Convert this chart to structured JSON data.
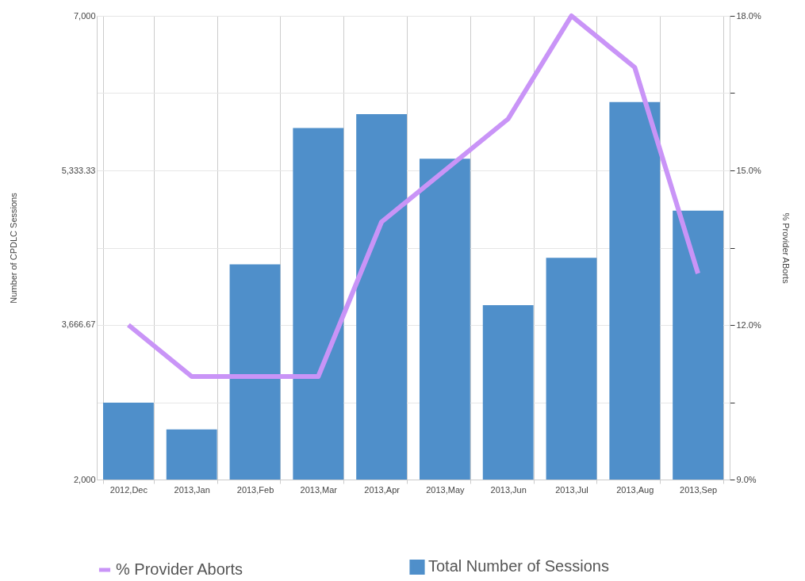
{
  "chart_data": {
    "type": "bar",
    "xlabel": null,
    "ylabel": "Number of CPDLC Sessions",
    "y2label": "% Provider ABorts",
    "categories": [
      "2012,Dec",
      "2013,Jan",
      "2013,Feb",
      "2013,Mar",
      "2013,Apr",
      "2013,May",
      "2013,Jun",
      "2013,Jul",
      "2013,Aug",
      "2013,Sep"
    ],
    "series": [
      {
        "name": "% Provider Aborts",
        "type": "line",
        "axis": "y2",
        "color": "#c994f7",
        "values": [
          12,
          11,
          11,
          11,
          14,
          15,
          16,
          18,
          17,
          13
        ]
      },
      {
        "name": "Total Number of Sessions",
        "color": "#4f8fca",
        "values": [
          2830,
          2540,
          4320,
          5790,
          5940,
          5460,
          3880,
          4390,
          6070,
          4900
        ]
      }
    ],
    "ylim": [
      2000,
      7000
    ],
    "yticks": [
      {
        "value": 2000,
        "label": "2,000"
      },
      {
        "value": 2833.33,
        "label": null
      },
      {
        "value": 3666.67,
        "label": "3,666.67"
      },
      {
        "value": 4500,
        "label": null
      },
      {
        "value": 5333.33,
        "label": "5,333.33"
      },
      {
        "value": 6166.67,
        "label": null
      },
      {
        "value": 7000,
        "label": "7,000"
      }
    ],
    "y2lim": [
      9,
      18
    ],
    "y2ticks": [
      {
        "value": 9,
        "label": "9.0%"
      },
      {
        "value": 10.5,
        "label": null
      },
      {
        "value": 12,
        "label": "12.0%"
      },
      {
        "value": 13.5,
        "label": null
      },
      {
        "value": 15,
        "label": "15.0%"
      },
      {
        "value": 16.5,
        "label": null
      },
      {
        "value": 18,
        "label": "18.0%"
      }
    ],
    "grid": true,
    "legend": "bottom"
  }
}
